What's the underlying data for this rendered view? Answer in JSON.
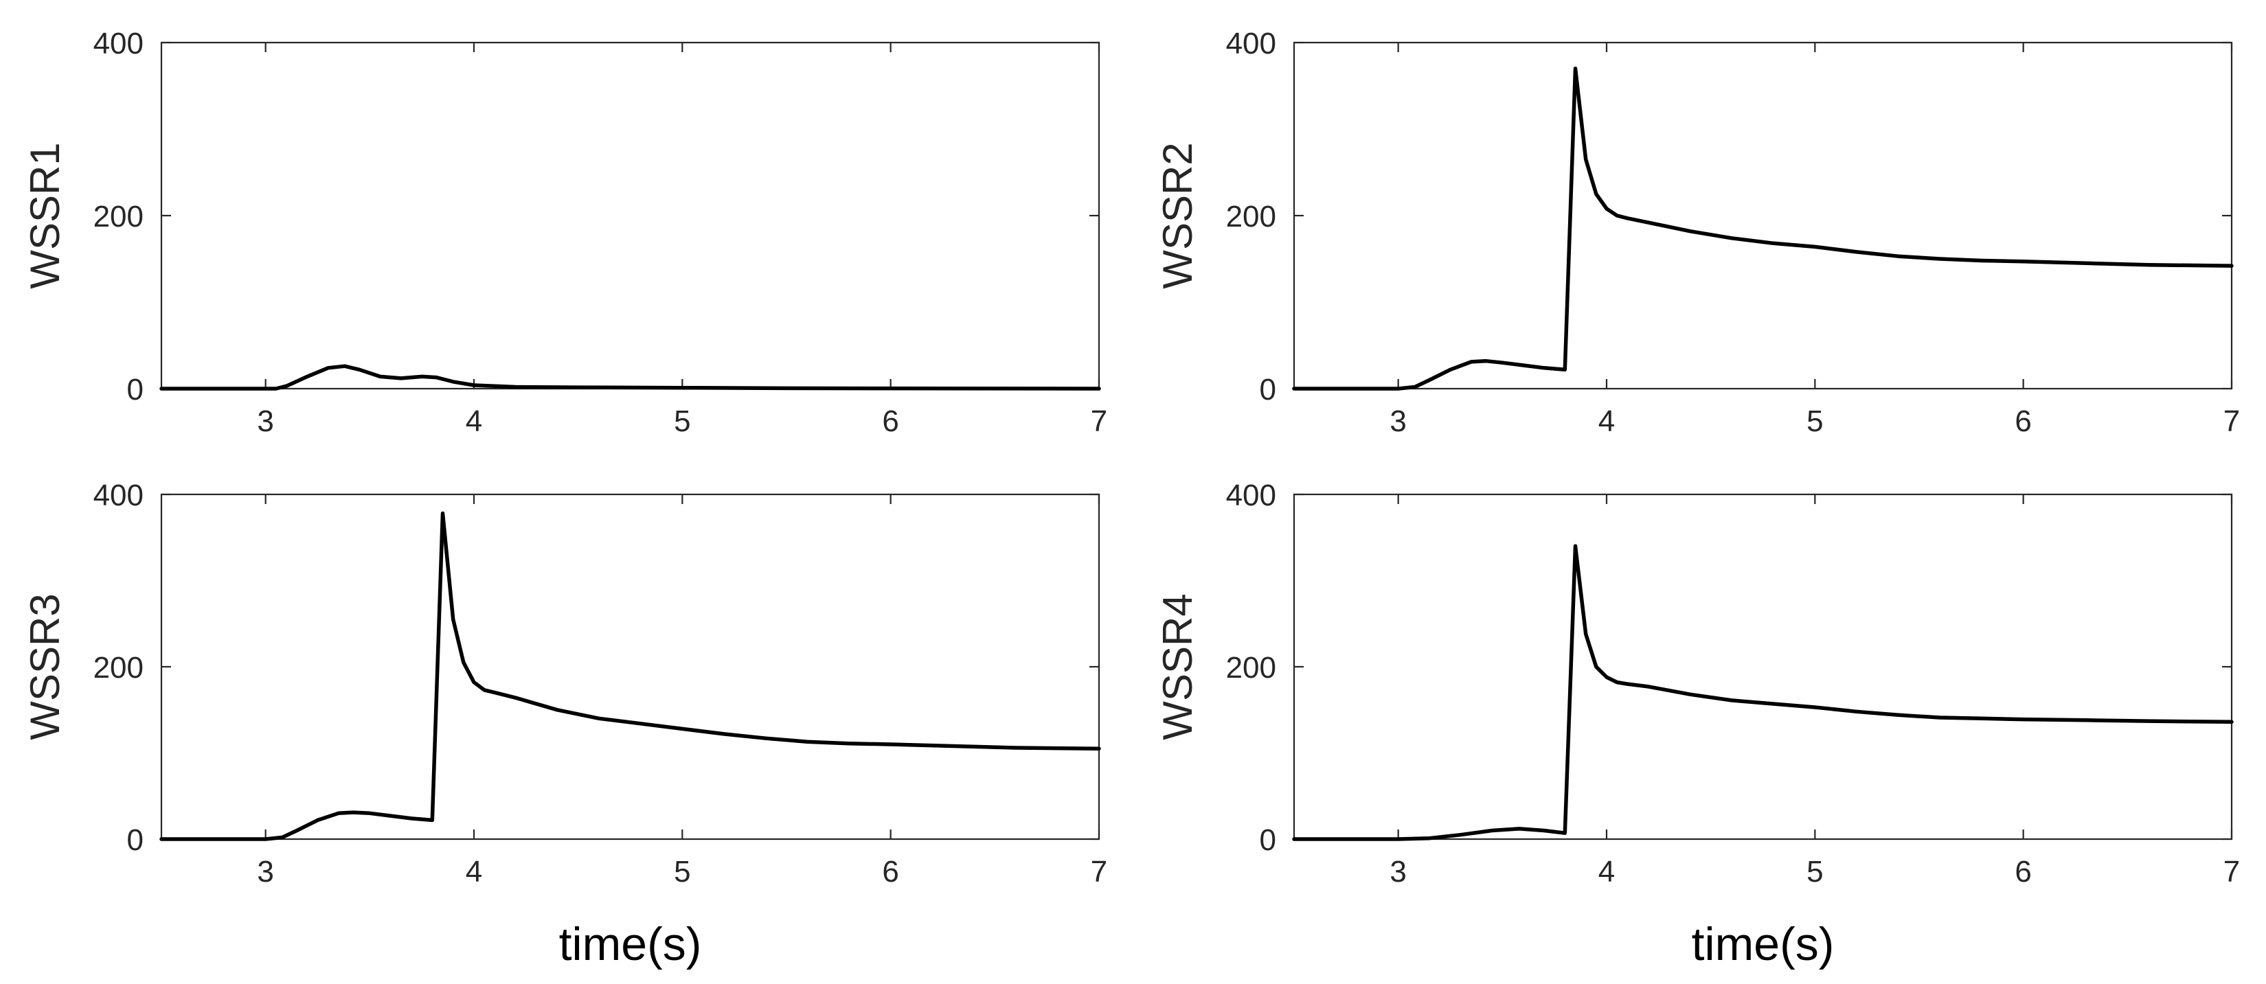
{
  "chart_data": [
    {
      "type": "line",
      "ylabel": "WSSR1",
      "xlabel": "",
      "xlim": [
        2.5,
        7
      ],
      "ylim": [
        0,
        400
      ],
      "xticks": [
        "3",
        "4",
        "5",
        "6",
        "7"
      ],
      "yticks": [
        "0",
        "200",
        "400"
      ],
      "series": [
        {
          "name": "WSSR1",
          "x": [
            2.5,
            3.0,
            3.05,
            3.1,
            3.2,
            3.3,
            3.38,
            3.45,
            3.55,
            3.65,
            3.75,
            3.82,
            3.9,
            4.0,
            4.2,
            4.5,
            5.0,
            5.5,
            6.0,
            7.0
          ],
          "y": [
            0,
            0,
            0,
            3,
            14,
            24,
            26,
            22,
            14,
            12,
            14,
            13,
            8,
            4,
            2,
            1.5,
            1,
            0.5,
            0.3,
            0
          ]
        }
      ]
    },
    {
      "type": "line",
      "ylabel": "WSSR2",
      "xlabel": "",
      "xlim": [
        2.5,
        7
      ],
      "ylim": [
        0,
        400
      ],
      "xticks": [
        "3",
        "4",
        "5",
        "6",
        "7"
      ],
      "yticks": [
        "0",
        "200",
        "400"
      ],
      "series": [
        {
          "name": "WSSR2",
          "x": [
            2.5,
            3.0,
            3.08,
            3.15,
            3.25,
            3.35,
            3.42,
            3.5,
            3.6,
            3.7,
            3.8,
            3.85,
            3.9,
            3.95,
            4.0,
            4.05,
            4.1,
            4.2,
            4.4,
            4.6,
            4.8,
            5.0,
            5.2,
            5.4,
            5.6,
            5.8,
            6.0,
            6.3,
            6.6,
            7.0
          ],
          "y": [
            0,
            0,
            2,
            10,
            22,
            31,
            32,
            30,
            27,
            24,
            22,
            370,
            265,
            225,
            208,
            200,
            197,
            192,
            182,
            174,
            168,
            164,
            158,
            153,
            150,
            148,
            147,
            145,
            143,
            142
          ]
        }
      ]
    },
    {
      "type": "line",
      "ylabel": "WSSR3",
      "xlabel": "time(s)",
      "xlim": [
        2.5,
        7
      ],
      "ylim": [
        0,
        400
      ],
      "xticks": [
        "3",
        "4",
        "5",
        "6",
        "7"
      ],
      "yticks": [
        "0",
        "200",
        "400"
      ],
      "series": [
        {
          "name": "WSSR3",
          "x": [
            2.5,
            3.0,
            3.08,
            3.15,
            3.25,
            3.35,
            3.42,
            3.5,
            3.6,
            3.7,
            3.8,
            3.85,
            3.9,
            3.95,
            4.0,
            4.05,
            4.1,
            4.2,
            4.4,
            4.6,
            4.8,
            5.0,
            5.2,
            5.4,
            5.6,
            5.8,
            6.0,
            6.3,
            6.6,
            7.0
          ],
          "y": [
            0,
            0,
            2,
            10,
            22,
            30,
            31,
            30,
            27,
            24,
            22,
            378,
            255,
            205,
            182,
            173,
            170,
            164,
            150,
            140,
            134,
            128,
            122,
            117,
            113,
            111,
            110,
            108,
            106,
            105
          ]
        }
      ]
    },
    {
      "type": "line",
      "ylabel": "WSSR4",
      "xlabel": "time(s)",
      "xlim": [
        2.5,
        7
      ],
      "ylim": [
        0,
        400
      ],
      "xticks": [
        "3",
        "4",
        "5",
        "6",
        "7"
      ],
      "yticks": [
        "0",
        "200",
        "400"
      ],
      "series": [
        {
          "name": "WSSR4",
          "x": [
            2.5,
            3.0,
            3.15,
            3.3,
            3.45,
            3.58,
            3.7,
            3.8,
            3.85,
            3.9,
            3.95,
            4.0,
            4.05,
            4.1,
            4.2,
            4.4,
            4.6,
            4.8,
            5.0,
            5.2,
            5.4,
            5.6,
            5.8,
            6.0,
            6.3,
            6.6,
            7.0
          ],
          "y": [
            0,
            0,
            1,
            5,
            10,
            12,
            10,
            7,
            340,
            238,
            200,
            188,
            182,
            180,
            177,
            168,
            161,
            157,
            153,
            148,
            144,
            141,
            140,
            139,
            138,
            137,
            136
          ]
        }
      ]
    }
  ]
}
